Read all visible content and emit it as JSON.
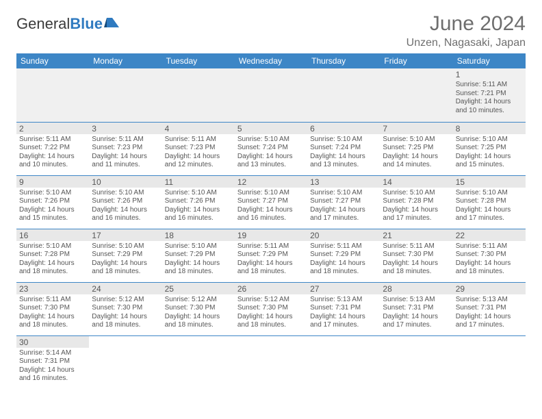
{
  "brand": {
    "name1": "General",
    "name2": "Blue"
  },
  "title": "June 2024",
  "location": "Unzen, Nagasaki, Japan",
  "colors": {
    "header_bg": "#3d86c6",
    "header_fg": "#ffffff",
    "grid_line": "#3d86c6",
    "num_shade": "#e8e8e8",
    "first_row_bg": "#f0f0f0",
    "text": "#555555"
  },
  "weekdays": [
    "Sunday",
    "Monday",
    "Tuesday",
    "Wednesday",
    "Thursday",
    "Friday",
    "Saturday"
  ],
  "weeks": [
    [
      null,
      null,
      null,
      null,
      null,
      null,
      {
        "n": "1",
        "sr": "5:11 AM",
        "ss": "7:21 PM",
        "dl": "14 hours and 10 minutes."
      }
    ],
    [
      {
        "n": "2",
        "sr": "5:11 AM",
        "ss": "7:22 PM",
        "dl": "14 hours and 10 minutes."
      },
      {
        "n": "3",
        "sr": "5:11 AM",
        "ss": "7:23 PM",
        "dl": "14 hours and 11 minutes."
      },
      {
        "n": "4",
        "sr": "5:11 AM",
        "ss": "7:23 PM",
        "dl": "14 hours and 12 minutes."
      },
      {
        "n": "5",
        "sr": "5:10 AM",
        "ss": "7:24 PM",
        "dl": "14 hours and 13 minutes."
      },
      {
        "n": "6",
        "sr": "5:10 AM",
        "ss": "7:24 PM",
        "dl": "14 hours and 13 minutes."
      },
      {
        "n": "7",
        "sr": "5:10 AM",
        "ss": "7:25 PM",
        "dl": "14 hours and 14 minutes."
      },
      {
        "n": "8",
        "sr": "5:10 AM",
        "ss": "7:25 PM",
        "dl": "14 hours and 15 minutes."
      }
    ],
    [
      {
        "n": "9",
        "sr": "5:10 AM",
        "ss": "7:26 PM",
        "dl": "14 hours and 15 minutes."
      },
      {
        "n": "10",
        "sr": "5:10 AM",
        "ss": "7:26 PM",
        "dl": "14 hours and 16 minutes."
      },
      {
        "n": "11",
        "sr": "5:10 AM",
        "ss": "7:26 PM",
        "dl": "14 hours and 16 minutes."
      },
      {
        "n": "12",
        "sr": "5:10 AM",
        "ss": "7:27 PM",
        "dl": "14 hours and 16 minutes."
      },
      {
        "n": "13",
        "sr": "5:10 AM",
        "ss": "7:27 PM",
        "dl": "14 hours and 17 minutes."
      },
      {
        "n": "14",
        "sr": "5:10 AM",
        "ss": "7:28 PM",
        "dl": "14 hours and 17 minutes."
      },
      {
        "n": "15",
        "sr": "5:10 AM",
        "ss": "7:28 PM",
        "dl": "14 hours and 17 minutes."
      }
    ],
    [
      {
        "n": "16",
        "sr": "5:10 AM",
        "ss": "7:28 PM",
        "dl": "14 hours and 18 minutes."
      },
      {
        "n": "17",
        "sr": "5:10 AM",
        "ss": "7:29 PM",
        "dl": "14 hours and 18 minutes."
      },
      {
        "n": "18",
        "sr": "5:10 AM",
        "ss": "7:29 PM",
        "dl": "14 hours and 18 minutes."
      },
      {
        "n": "19",
        "sr": "5:11 AM",
        "ss": "7:29 PM",
        "dl": "14 hours and 18 minutes."
      },
      {
        "n": "20",
        "sr": "5:11 AM",
        "ss": "7:29 PM",
        "dl": "14 hours and 18 minutes."
      },
      {
        "n": "21",
        "sr": "5:11 AM",
        "ss": "7:30 PM",
        "dl": "14 hours and 18 minutes."
      },
      {
        "n": "22",
        "sr": "5:11 AM",
        "ss": "7:30 PM",
        "dl": "14 hours and 18 minutes."
      }
    ],
    [
      {
        "n": "23",
        "sr": "5:11 AM",
        "ss": "7:30 PM",
        "dl": "14 hours and 18 minutes."
      },
      {
        "n": "24",
        "sr": "5:12 AM",
        "ss": "7:30 PM",
        "dl": "14 hours and 18 minutes."
      },
      {
        "n": "25",
        "sr": "5:12 AM",
        "ss": "7:30 PM",
        "dl": "14 hours and 18 minutes."
      },
      {
        "n": "26",
        "sr": "5:12 AM",
        "ss": "7:30 PM",
        "dl": "14 hours and 18 minutes."
      },
      {
        "n": "27",
        "sr": "5:13 AM",
        "ss": "7:31 PM",
        "dl": "14 hours and 17 minutes."
      },
      {
        "n": "28",
        "sr": "5:13 AM",
        "ss": "7:31 PM",
        "dl": "14 hours and 17 minutes."
      },
      {
        "n": "29",
        "sr": "5:13 AM",
        "ss": "7:31 PM",
        "dl": "14 hours and 17 minutes."
      }
    ],
    [
      {
        "n": "30",
        "sr": "5:14 AM",
        "ss": "7:31 PM",
        "dl": "14 hours and 16 minutes."
      },
      null,
      null,
      null,
      null,
      null,
      null
    ]
  ],
  "labels": {
    "sunrise": "Sunrise: ",
    "sunset": "Sunset: ",
    "daylight": "Daylight: "
  }
}
